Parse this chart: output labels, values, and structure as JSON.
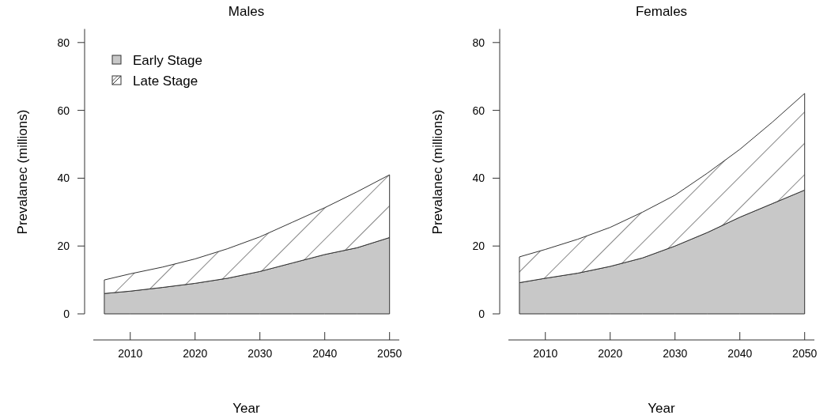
{
  "chart_data": [
    {
      "type": "area",
      "stacked": true,
      "title": "Males",
      "xlabel": "Year",
      "ylabel": "Prevalanec (millions)",
      "x": [
        2006,
        2010,
        2015,
        2020,
        2025,
        2030,
        2035,
        2040,
        2045,
        2050
      ],
      "xlim": [
        2004.3,
        2051.5
      ],
      "xticks": [
        2010,
        2020,
        2030,
        2040,
        2050
      ],
      "ylim": [
        0,
        84
      ],
      "yticks": [
        0,
        20,
        40,
        60,
        80
      ],
      "legend": "top left",
      "series": [
        {
          "name": "Early Stage",
          "color": "#c8c8c8",
          "values": [
            6,
            6.7,
            7.8,
            9,
            10.5,
            12.5,
            15,
            17.5,
            19.5,
            22.5
          ]
        },
        {
          "name": "Late Stage",
          "color": "#333333",
          "values": [
            4,
            5.1,
            6,
            7.2,
            8.7,
            10.2,
            12,
            13.8,
            16.5,
            18.5
          ]
        }
      ]
    },
    {
      "type": "area",
      "stacked": true,
      "title": "Females",
      "xlabel": "Year",
      "ylabel": "Prevalanec (millions)",
      "x": [
        2006,
        2010,
        2015,
        2020,
        2025,
        2030,
        2035,
        2040,
        2045,
        2050
      ],
      "xlim": [
        2004.3,
        2051.5
      ],
      "xticks": [
        2010,
        2020,
        2030,
        2040,
        2050
      ],
      "ylim": [
        0,
        84
      ],
      "yticks": [
        0,
        20,
        40,
        60,
        80
      ],
      "series": [
        {
          "color": "#c8c8c8",
          "values": [
            9.2,
            10.5,
            12,
            14,
            16.5,
            20,
            24,
            28.5,
            32.5,
            36.5
          ]
        },
        {
          "color": "#333333",
          "values": [
            7.6,
            8.5,
            10,
            11.5,
            13.5,
            15,
            17.5,
            20,
            24,
            28.5
          ]
        }
      ]
    }
  ]
}
